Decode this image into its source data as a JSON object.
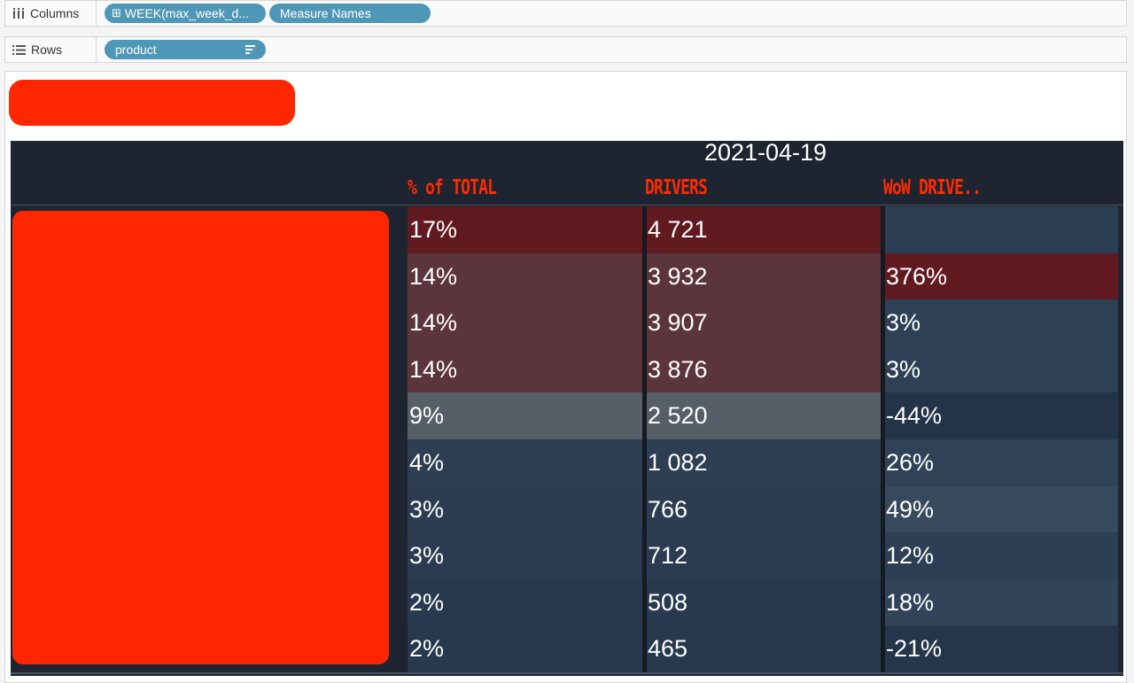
{
  "columns_shelf": {
    "label": "Columns",
    "pills": [
      {
        "icon": "⊞",
        "label": "WEEK(max_week_d..."
      },
      {
        "icon": "",
        "label": "Measure Names"
      }
    ]
  },
  "rows_shelf": {
    "label": "Rows",
    "pills": [
      {
        "label": "product"
      }
    ]
  },
  "table": {
    "date_header": "2021-04-19",
    "headers": [
      "% of TOTAL",
      "DRIVERS",
      "WoW DRIVE.."
    ],
    "rows": [
      [
        "17%",
        "4 721",
        ""
      ],
      [
        "14%",
        "3 932",
        "376%"
      ],
      [
        "14%",
        "3 907",
        "3%"
      ],
      [
        "14%",
        "3 876",
        "3%"
      ],
      [
        "9%",
        "2 520",
        "-44%"
      ],
      [
        "4%",
        "1 082",
        "26%"
      ],
      [
        "3%",
        "766",
        "49%"
      ],
      [
        "3%",
        "712",
        "12%"
      ],
      [
        "2%",
        "508",
        "18%"
      ],
      [
        "2%",
        "465",
        "-21%"
      ]
    ],
    "colors": {
      "col0": [
        "#611a20",
        "#5b343c",
        "#5b343c",
        "#5b343c",
        "#575e68",
        "#2e3e53",
        "#2c3d52",
        "#2b3b51",
        "#283a4f",
        "#27394e"
      ],
      "col1": [
        "#611a20",
        "#5b343c",
        "#5b343c",
        "#5b343c",
        "#575e68",
        "#2e3e53",
        "#2c3d52",
        "#2b3b51",
        "#283a4f",
        "#27394e"
      ],
      "col2": [
        "#2c3e53",
        "#611a20",
        "#2e4055",
        "#2e4055",
        "#243448",
        "#2f4257",
        "#36495d",
        "#2d3f54",
        "#314459",
        "#25364a"
      ]
    }
  }
}
